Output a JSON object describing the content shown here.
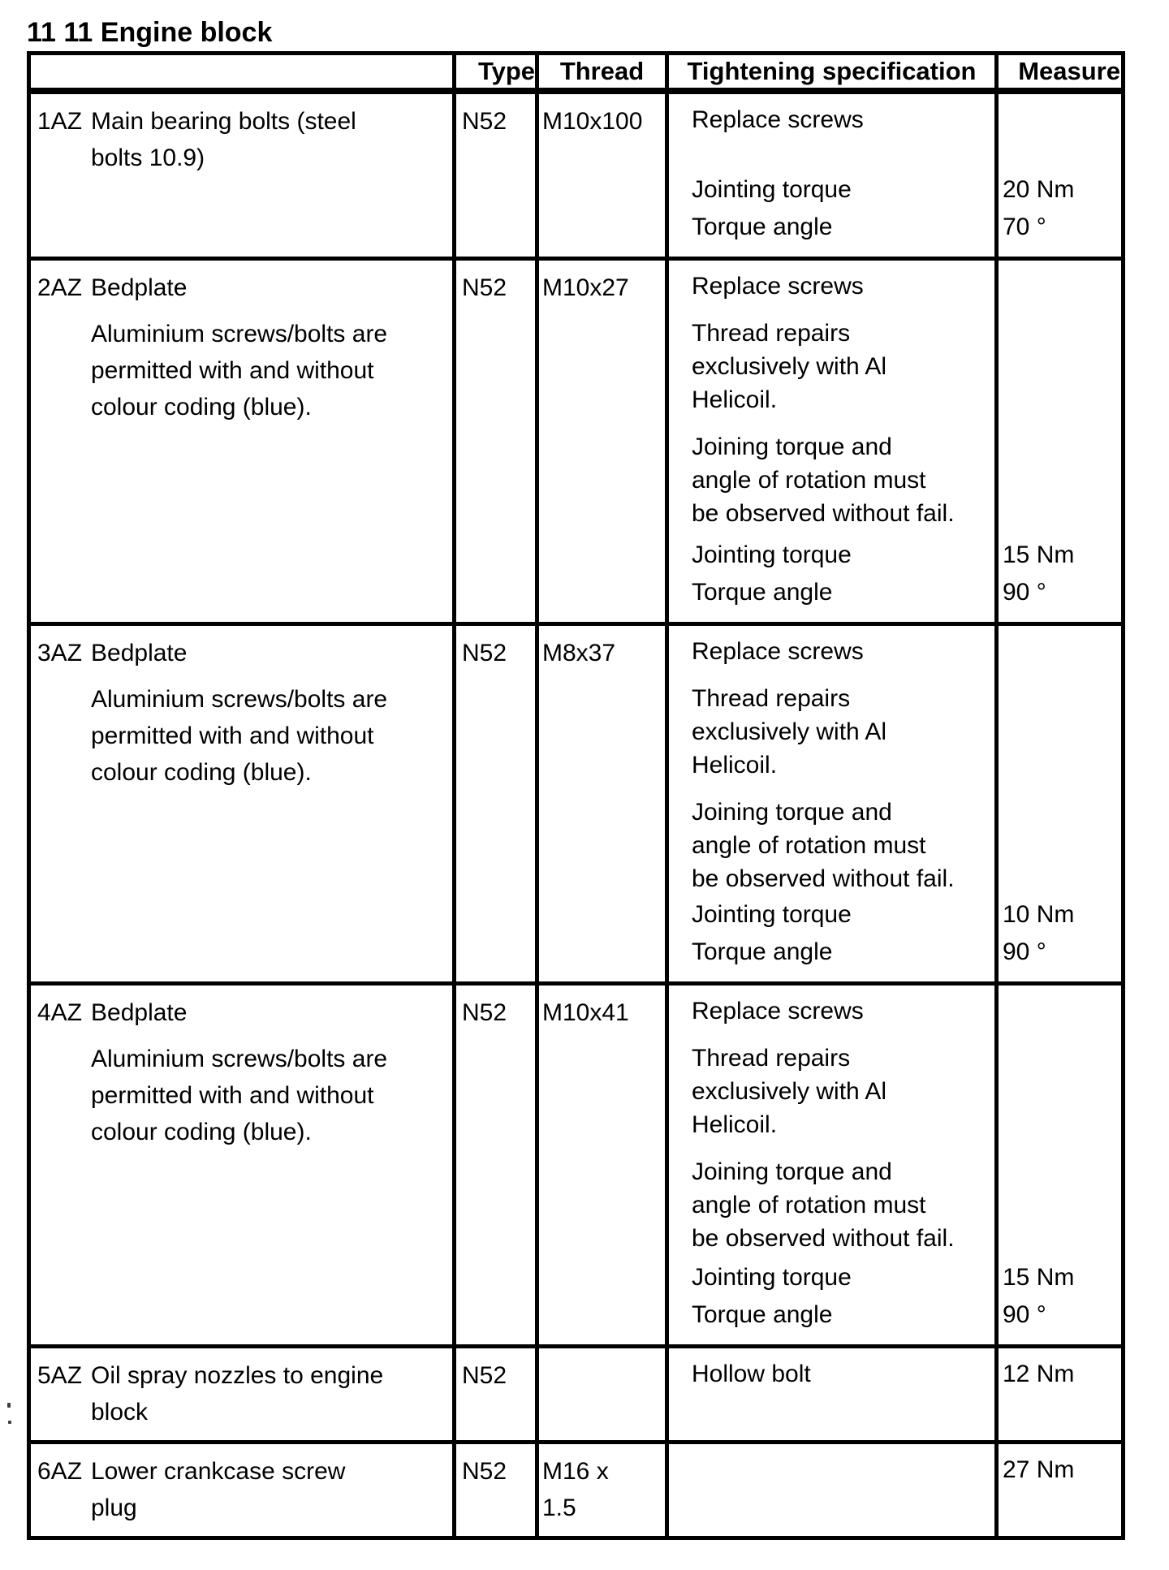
{
  "page": {
    "title": "11 11 Engine block"
  },
  "table": {
    "columns": {
      "item": "",
      "type": "Type",
      "thread": "Thread",
      "spec": "Tightening specification",
      "measure": "Measure"
    },
    "rows": [
      {
        "id": "1AZ",
        "name": "Main bearing bolts (steel\nbolts 10.9)",
        "type": "N52",
        "thread": "M10x100",
        "spec_paragraphs": [
          "Replace screws"
        ],
        "torque_label": "Jointing torque",
        "torque_value": "20 Nm",
        "angle_label": "Torque angle",
        "angle_value": "70 °"
      },
      {
        "id": "2AZ",
        "name": "Bedplate",
        "note": "Aluminium screws/bolts are\npermitted with and without\ncolour coding (blue).",
        "type": "N52",
        "thread": "M10x27",
        "spec_paragraphs": [
          "Replace screws",
          "Thread repairs\nexclusively with Al\nHelicoil.",
          "Joining torque and\nangle of rotation must\nbe observed without fail."
        ],
        "torque_label": "Jointing torque",
        "torque_value": "15 Nm",
        "angle_label": "Torque angle",
        "angle_value": "90 °"
      },
      {
        "id": "3AZ",
        "name": "Bedplate",
        "note": "Aluminium screws/bolts are\npermitted with and without\ncolour coding (blue).",
        "type": "N52",
        "thread": "M8x37",
        "spec_paragraphs": [
          "Replace screws",
          "Thread repairs\nexclusively with Al\nHelicoil.",
          "Joining torque and\nangle of rotation must\nbe observed without fail."
        ],
        "torque_label": "Jointing torque",
        "torque_value": "10 Nm",
        "angle_label": "Torque angle",
        "angle_value": "90 °"
      },
      {
        "id": "4AZ",
        "name": "Bedplate",
        "note": "Aluminium screws/bolts are\npermitted with and without\ncolour coding (blue).",
        "type": "N52",
        "thread": "M10x41",
        "spec_paragraphs": [
          "Replace screws",
          "Thread repairs\nexclusively with Al\nHelicoil.",
          "Joining torque and\nangle of rotation must\nbe observed without fail."
        ],
        "torque_label": "Jointing torque",
        "torque_value": "15 Nm",
        "angle_label": "Torque angle",
        "angle_value": "90 °"
      },
      {
        "id": "5AZ",
        "name": "Oil spray nozzles to engine\nblock",
        "type": "N52",
        "thread": "",
        "spec_paragraphs": [
          "Hollow bolt"
        ],
        "measure_value": "12 Nm"
      },
      {
        "id": "6AZ",
        "name": "Lower crankcase screw\nplug",
        "type": "N52",
        "thread": "M16 x\n1.5",
        "spec_paragraphs": [],
        "measure_value": "27 Nm"
      }
    ]
  }
}
